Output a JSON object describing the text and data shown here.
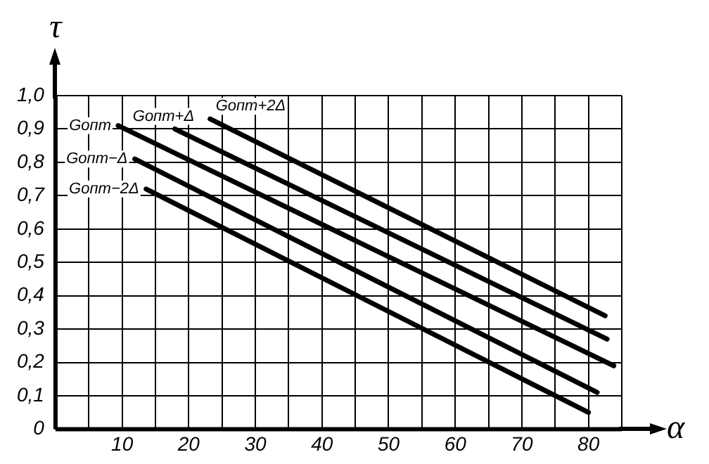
{
  "chart_data": {
    "type": "line",
    "xlabel": "α",
    "ylabel": "τ",
    "xlim": [
      0,
      85
    ],
    "ylim": [
      0,
      1.0
    ],
    "xticks": [
      {
        "value": 5,
        "label": null
      },
      10,
      {
        "value": 15,
        "label": null
      },
      20,
      {
        "value": 25,
        "label": null
      },
      30,
      {
        "value": 35,
        "label": null
      },
      40,
      {
        "value": 45,
        "label": null
      },
      50,
      {
        "value": 55,
        "label": null
      },
      60,
      {
        "value": 65,
        "label": null
      },
      70,
      {
        "value": 75,
        "label": null
      },
      80,
      {
        "value": 85,
        "label": null
      }
    ],
    "yticks": [
      0,
      {
        "value": 0.1,
        "label": "0,1"
      },
      {
        "value": 0.2,
        "label": "0,2"
      },
      {
        "value": 0.3,
        "label": "0,3"
      },
      {
        "value": 0.4,
        "label": "0,4"
      },
      {
        "value": 0.5,
        "label": "0,5"
      },
      {
        "value": 0.6,
        "label": "0,6"
      },
      {
        "value": 0.7,
        "label": "0,7"
      },
      {
        "value": 0.8,
        "label": "0,8"
      },
      {
        "value": 0.9,
        "label": "0,9"
      },
      {
        "value": 1.0,
        "label": "1,0"
      }
    ],
    "grid": true,
    "legend": false,
    "marker": "none",
    "line_style": "solid",
    "series": [
      {
        "name": "Gопт+2Δ",
        "color": "#000000",
        "x": [
          23.2,
          82.5
        ],
        "values": [
          0.93,
          0.34
        ]
      },
      {
        "name": "Gопт+Δ",
        "color": "#000000",
        "x": [
          17.9,
          82.8
        ],
        "values": [
          0.9,
          0.27
        ]
      },
      {
        "name": "Gопт",
        "color": "#000000",
        "x": [
          9.4,
          83.8
        ],
        "values": [
          0.91,
          0.19
        ]
      },
      {
        "name": "Gопт−Δ",
        "color": "#000000",
        "x": [
          11.9,
          81.3
        ],
        "values": [
          0.81,
          0.11
        ]
      },
      {
        "name": "Gопт−2Δ",
        "color": "#000000",
        "x": [
          13.6,
          80
        ],
        "values": [
          0.72,
          0.05
        ]
      }
    ]
  }
}
